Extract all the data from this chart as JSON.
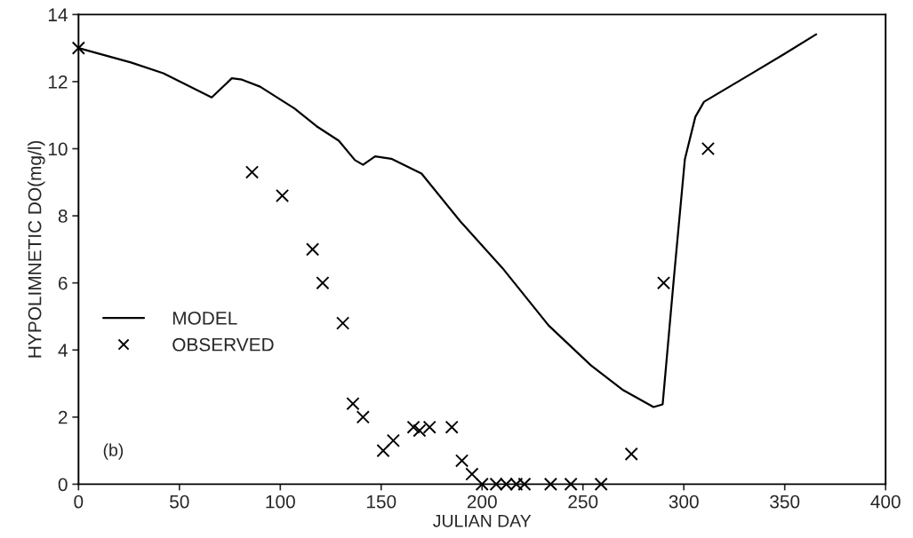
{
  "chart_data": {
    "type": "line",
    "xlabel": "JULIAN DAY",
    "ylabel": "HYPOLIMNETIC DO(mg/l)",
    "annotations": [
      "(b)"
    ],
    "xlim": [
      0,
      400
    ],
    "xticks": [
      0,
      50,
      100,
      150,
      200,
      250,
      300,
      350,
      400
    ],
    "ylim": [
      0,
      14
    ],
    "yticks": [
      0,
      2,
      4,
      6,
      8,
      10,
      12,
      14
    ],
    "grid": false,
    "legend": "lower left",
    "series": [
      {
        "name": "MODEL",
        "color": "#000000",
        "marker": "none",
        "line_style": "solid",
        "x": [
          0,
          26,
          42,
          66,
          76,
          81,
          90,
          107,
          118,
          129,
          137,
          141,
          147,
          155,
          170,
          189,
          210,
          233,
          254,
          270,
          285,
          289.5,
          295,
          300.5,
          305.7,
          310,
          333,
          350,
          365.6
        ],
        "values": [
          13.0,
          12.57,
          12.25,
          11.53,
          12.1,
          12.06,
          11.85,
          11.2,
          10.67,
          10.24,
          9.66,
          9.52,
          9.77,
          9.7,
          9.26,
          7.85,
          6.45,
          4.73,
          3.54,
          2.8,
          2.3,
          2.38,
          6.1,
          9.68,
          10.95,
          11.4,
          12.22,
          12.83,
          13.41
        ]
      },
      {
        "name": "OBSERVED",
        "type": "scatter",
        "color": "#000000",
        "marker": "cross",
        "x": [
          0,
          86,
          101,
          116,
          121,
          131,
          136,
          141,
          151,
          156,
          166,
          169,
          174,
          185,
          190,
          195,
          200,
          207,
          212,
          217,
          221,
          234,
          244,
          259,
          274,
          290,
          312
        ],
        "values": [
          13.0,
          9.3,
          8.6,
          7.0,
          6.0,
          4.8,
          2.4,
          2.0,
          1.0,
          1.3,
          1.7,
          1.6,
          1.7,
          1.7,
          0.7,
          0.3,
          0,
          0,
          0,
          0,
          0,
          0,
          0,
          0,
          0.9,
          6.0,
          10.0
        ]
      }
    ]
  }
}
